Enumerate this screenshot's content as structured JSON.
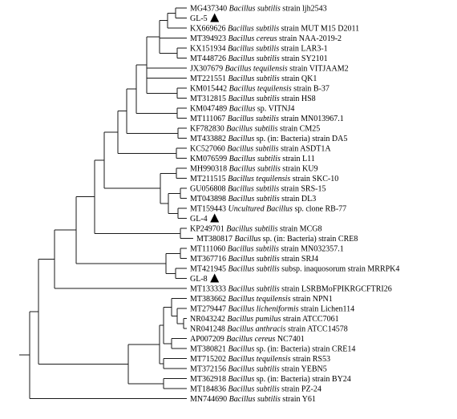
{
  "taxa": [
    {
      "acc": "MG437340",
      "name": "Bacillus subtilis",
      "rest": " strain ljh2543",
      "marker": false
    },
    {
      "acc": "GL-5",
      "name": "",
      "rest": "",
      "marker": true
    },
    {
      "acc": "KX669626",
      "name": "Bacillus subtilis",
      "rest": " strain MUT M15 D2011",
      "marker": false
    },
    {
      "acc": "MT394923",
      "name": "Bacillus cereus",
      "rest": " strain NAA-2019-2",
      "marker": false
    },
    {
      "acc": "KX151934",
      "name": "Bacillus subtilis",
      "rest": " strain LAR3-1",
      "marker": false
    },
    {
      "acc": "MT448726",
      "name": "Bacillus subtilis",
      "rest": " strain SY2101",
      "marker": false
    },
    {
      "acc": "JX307679",
      "name": "Bacillus tequilensis",
      "rest": " strain VITJAAM2",
      "marker": false
    },
    {
      "acc": "MT221551",
      "name": "Bacillus subtilis",
      "rest": " strain QK1",
      "marker": false
    },
    {
      "acc": "KM015442",
      "name": "Bacillus tequilensis",
      "rest": " strain B-37",
      "marker": false
    },
    {
      "acc": "MT312815",
      "name": "Bacillus subtilis",
      "rest": " strain HS8",
      "marker": false
    },
    {
      "acc": "KM047489",
      "name": "Bacillus",
      "rest": " sp. VITNJ4",
      "marker": false
    },
    {
      "acc": "MT111067",
      "name": "Bacillus subtilis",
      "rest": " strain MN013967.1",
      "marker": false
    },
    {
      "acc": "KF782830",
      "name": "Bacillus subtilis",
      "rest": " strain CM25",
      "marker": false
    },
    {
      "acc": "MT433882",
      "name": "Bacillus",
      "rest": " sp. (in: Bacteria) strain DA5",
      "marker": false
    },
    {
      "acc": "KC527060",
      "name": "Bacillus subtilis",
      "rest": " strain ASDT1A",
      "marker": false
    },
    {
      "acc": "KM076599",
      "name": "Bacillus subtilis",
      "rest": " strain L11",
      "marker": false
    },
    {
      "acc": "MH990318",
      "name": "Bacillus subtilis",
      "rest": " strain KU9",
      "marker": false
    },
    {
      "acc": "MT211515",
      "name": "Bacillus tequilensis",
      "rest": " strain SKC-10",
      "marker": false
    },
    {
      "acc": "GU056808",
      "name": "Bacillus subtilis",
      "rest": " strain SRS-15",
      "marker": false
    },
    {
      "acc": "MT043898",
      "name": "Bacillus subtilis",
      "rest": " strain DL3",
      "marker": false
    },
    {
      "acc": "MT159443",
      "name": "Uncultured Bacillus",
      "rest": " sp. clone RB-77",
      "marker": false
    },
    {
      "acc": "GL-4",
      "name": "",
      "rest": "",
      "marker": true
    },
    {
      "acc": "KP249701",
      "name": "Bacillus subtilis",
      "rest": " strain MCG8",
      "marker": false
    },
    {
      "acc": "MT380817",
      "name": "Bacillus",
      "rest": " sp. (in: Bacteria) strain CRE8",
      "marker": false
    },
    {
      "acc": "MT111060",
      "name": "Bacillus subtilis",
      "rest": " strain MN032357.1",
      "marker": false
    },
    {
      "acc": "MT367716",
      "name": "Bacillus subtilis",
      "rest": " strain SRJ4",
      "marker": false
    },
    {
      "acc": "MT421945",
      "name": "Bacillus subtilis",
      "rest": " subsp. inaquosorum strain MRRPK4",
      "marker": false
    },
    {
      "acc": "GL-8",
      "name": "",
      "rest": "",
      "marker": true
    },
    {
      "acc": "MT133333",
      "name": "Bacillus subtilis",
      "rest": " strain LSRBMoFPIKRGCFTRI26",
      "marker": false
    },
    {
      "acc": "MT383662",
      "name": "Bacillus tequilensis",
      "rest": " strain NPN1",
      "marker": false
    },
    {
      "acc": "MT279447",
      "name": "Bacillus licheniformis",
      "rest": " strain Lichen114",
      "marker": false
    },
    {
      "acc": "NR043242",
      "name": "Bacillus pumilus",
      "rest": " strain ATCC7061",
      "marker": false
    },
    {
      "acc": "NR041248",
      "name": "Bacillus anthracis",
      "rest": " strain ATCC14578",
      "marker": false
    },
    {
      "acc": "AP007209",
      "name": "Bacillus cereus",
      "rest": " NC7401",
      "marker": false
    },
    {
      "acc": "MT380821",
      "name": "Bacillus",
      "rest": " sp. (in: Bacteria) strain CRE14",
      "marker": false
    },
    {
      "acc": "MT715202",
      "name": "Bacillus tequilensis",
      "rest": " strain RS53",
      "marker": false
    },
    {
      "acc": "MT372156",
      "name": "Bacillus subtilis",
      "rest": " strain YEBN5",
      "marker": false
    },
    {
      "acc": "MT362918",
      "name": "Bacillus",
      "rest": " sp. (in: Bacteria) strain BY24",
      "marker": false
    },
    {
      "acc": "MT184836",
      "name": "Bacillus subtilis",
      "rest": " strain PZ-24",
      "marker": false
    },
    {
      "acc": "MN744690",
      "name": "Bacillus subtilis",
      "rest": " strain Y61",
      "marker": false
    }
  ]
}
